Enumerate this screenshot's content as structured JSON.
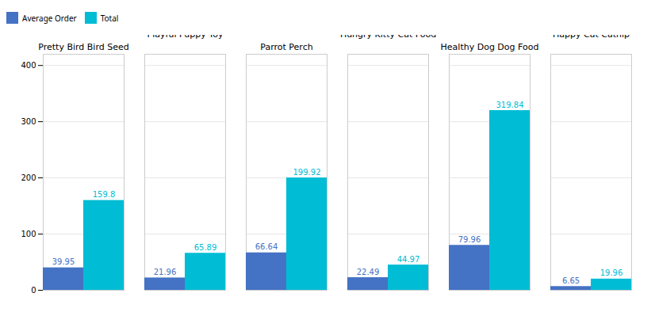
{
  "chart_data": {
    "type": "bar",
    "categories": [
      "Pretty Bird Bird Seed",
      "Playful Puppy Toy",
      "Parrot Perch",
      "Hungry Kitty Cat Food",
      "Healthy Dog Dog Food",
      "Happy Cat Catnip"
    ],
    "series": [
      {
        "name": "Average Order",
        "color": "#4472C4",
        "values": [
          39.95,
          21.96,
          66.64,
          22.49,
          79.96,
          6.65
        ]
      },
      {
        "name": "Total",
        "color": "#00BCD4",
        "values": [
          159.8,
          65.89,
          199.92,
          44.97,
          319.84,
          19.96
        ]
      }
    ],
    "ylim": [
      0,
      420
    ],
    "yticks": [
      0,
      100,
      200,
      300,
      400
    ],
    "grid": true,
    "legend": "upper left",
    "data_labels": true
  }
}
